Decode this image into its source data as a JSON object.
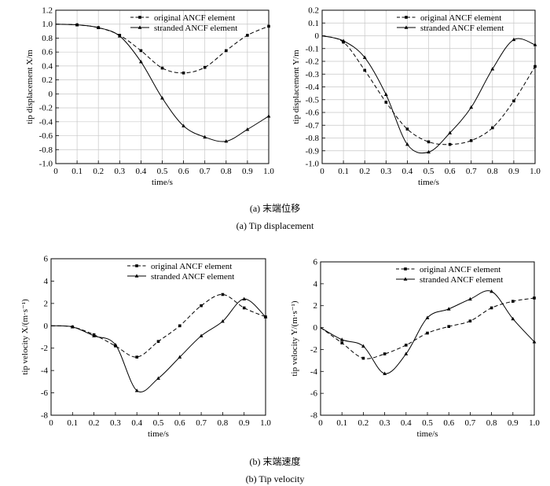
{
  "captions": {
    "a_zh": "(a) 末端位移",
    "a_en": "(a) Tip displacement",
    "b_zh": "(b) 末端速度",
    "b_en": "(b) Tip velocity"
  },
  "chart_data": [
    {
      "type": "line",
      "xlabel": "time/s",
      "ylabel": "tip displacement X/m",
      "xlim": [
        0,
        1
      ],
      "ylim": [
        -1.0,
        1.2
      ],
      "xticks": [
        0,
        0.1,
        0.2,
        0.3,
        0.4,
        0.5,
        0.6,
        0.7,
        0.8,
        0.9,
        1.0
      ],
      "yticks": [
        -1.0,
        -0.8,
        -0.6,
        -0.4,
        -0.2,
        0,
        0.2,
        0.4,
        0.6,
        0.8,
        1.0,
        1.2
      ],
      "grid": true,
      "legend": "top-right",
      "series": [
        {
          "name": "original ANCF element",
          "style": "dashed",
          "marker": "square",
          "x": [
            0,
            0.1,
            0.2,
            0.3,
            0.4,
            0.5,
            0.6,
            0.7,
            0.8,
            0.9,
            1.0
          ],
          "y": [
            1.0,
            0.99,
            0.95,
            0.84,
            0.62,
            0.37,
            0.3,
            0.38,
            0.62,
            0.84,
            0.97
          ]
        },
        {
          "name": "stranded ANCF element",
          "style": "solid",
          "marker": "triangle",
          "x": [
            0,
            0.1,
            0.2,
            0.3,
            0.4,
            0.5,
            0.6,
            0.7,
            0.8,
            0.9,
            1.0
          ],
          "y": [
            1.0,
            0.99,
            0.95,
            0.83,
            0.46,
            -0.06,
            -0.46,
            -0.62,
            -0.68,
            -0.51,
            -0.32
          ]
        }
      ]
    },
    {
      "type": "line",
      "xlabel": "time/s",
      "ylabel": "tip displacement Y/m",
      "xlim": [
        0,
        1
      ],
      "ylim": [
        -1.0,
        0.2
      ],
      "xticks": [
        0,
        0.1,
        0.2,
        0.3,
        0.4,
        0.5,
        0.6,
        0.7,
        0.8,
        0.9,
        1.0
      ],
      "yticks": [
        -1.0,
        -0.9,
        -0.8,
        -0.7,
        -0.6,
        -0.5,
        -0.4,
        -0.3,
        -0.2,
        -0.1,
        0,
        0.1,
        0.2
      ],
      "grid": true,
      "legend": "top-right",
      "series": [
        {
          "name": "original ANCF element",
          "style": "dashed",
          "marker": "square",
          "x": [
            0,
            0.1,
            0.2,
            0.3,
            0.4,
            0.5,
            0.6,
            0.7,
            0.8,
            0.9,
            1.0
          ],
          "y": [
            0,
            -0.05,
            -0.27,
            -0.52,
            -0.73,
            -0.83,
            -0.85,
            -0.82,
            -0.72,
            -0.51,
            -0.24
          ]
        },
        {
          "name": "stranded ANCF element",
          "style": "solid",
          "marker": "triangle",
          "x": [
            0,
            0.1,
            0.2,
            0.3,
            0.4,
            0.5,
            0.6,
            0.7,
            0.8,
            0.9,
            1.0
          ],
          "y": [
            0,
            -0.04,
            -0.17,
            -0.46,
            -0.85,
            -0.91,
            -0.76,
            -0.56,
            -0.26,
            -0.03,
            -0.07
          ]
        }
      ]
    },
    {
      "type": "line",
      "xlabel": "time/s",
      "ylabel": "tip velocity X/(m·s⁻¹)",
      "xlim": [
        0,
        1
      ],
      "ylim": [
        -8,
        6
      ],
      "xticks": [
        0,
        0.1,
        0.2,
        0.3,
        0.4,
        0.5,
        0.6,
        0.7,
        0.8,
        0.9,
        1.0
      ],
      "yticks": [
        -8,
        -6,
        -4,
        -2,
        0,
        2,
        4,
        6
      ],
      "grid": false,
      "legend": "top-right",
      "series": [
        {
          "name": "original ANCF element",
          "style": "dashed",
          "marker": "square",
          "x": [
            0,
            0.1,
            0.2,
            0.3,
            0.4,
            0.5,
            0.6,
            0.7,
            0.8,
            0.9,
            1.0
          ],
          "y": [
            0,
            -0.1,
            -0.8,
            -1.8,
            -2.8,
            -1.4,
            0.0,
            1.8,
            2.8,
            1.6,
            0.8
          ]
        },
        {
          "name": "stranded ANCF element",
          "style": "solid",
          "marker": "triangle",
          "x": [
            0,
            0.1,
            0.2,
            0.3,
            0.4,
            0.5,
            0.6,
            0.7,
            0.8,
            0.9,
            1.0
          ],
          "y": [
            0,
            -0.1,
            -0.9,
            -1.7,
            -5.8,
            -4.7,
            -2.8,
            -0.9,
            0.4,
            2.4,
            0.8
          ]
        }
      ]
    },
    {
      "type": "line",
      "xlabel": "time/s",
      "ylabel": "tip velocity Y/(m·s⁻¹)",
      "xlim": [
        0,
        1
      ],
      "ylim": [
        -8,
        6
      ],
      "xticks": [
        0,
        0.1,
        0.2,
        0.3,
        0.4,
        0.5,
        0.6,
        0.7,
        0.8,
        0.9,
        1.0
      ],
      "yticks": [
        -8,
        -6,
        -4,
        -2,
        0,
        2,
        4,
        6
      ],
      "grid": false,
      "legend": "top-right",
      "series": [
        {
          "name": "original ANCF element",
          "style": "dashed",
          "marker": "square",
          "x": [
            0,
            0.1,
            0.2,
            0.3,
            0.4,
            0.5,
            0.6,
            0.7,
            0.8,
            0.9,
            1.0
          ],
          "y": [
            0,
            -1.4,
            -2.8,
            -2.4,
            -1.6,
            -0.5,
            0.1,
            0.6,
            1.8,
            2.4,
            2.7
          ]
        },
        {
          "name": "stranded ANCF element",
          "style": "solid",
          "marker": "triangle",
          "x": [
            0,
            0.1,
            0.2,
            0.3,
            0.4,
            0.5,
            0.6,
            0.7,
            0.8,
            0.9,
            1.0
          ],
          "y": [
            0,
            -1.1,
            -1.7,
            -4.2,
            -2.4,
            0.9,
            1.7,
            2.6,
            3.3,
            0.8,
            -1.3
          ]
        }
      ]
    }
  ]
}
